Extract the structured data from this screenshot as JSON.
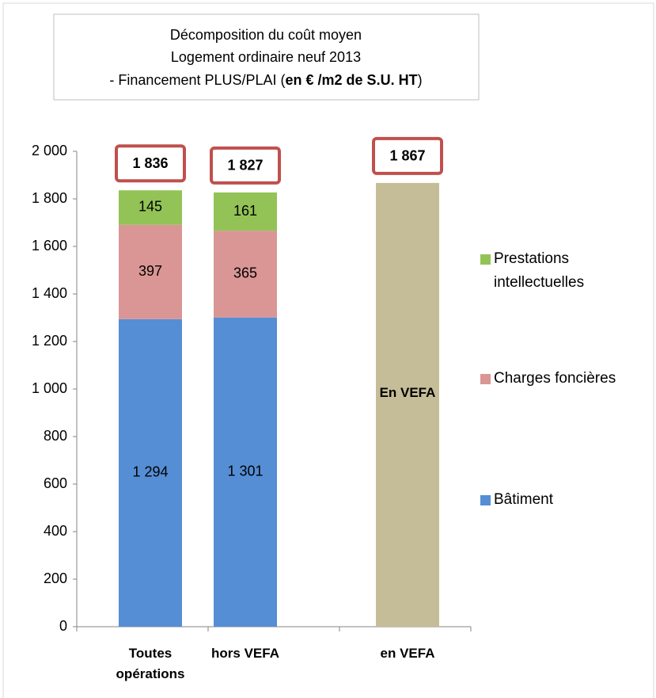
{
  "chart_data": {
    "type": "stacked_bar",
    "title": [
      "Décomposition du coût moyen",
      "Logement ordinaire neuf 2013",
      [
        "- Financement PLUS/PLAI (",
        "en € /m2 de S.U. HT",
        ")"
      ]
    ],
    "categories": [
      "Toutes opérations",
      "hors VEFA",
      "en VEFA"
    ],
    "series": [
      {
        "name": "Bâtiment",
        "color": "#558ed5",
        "values": [
          1294,
          1301,
          null
        ],
        "value_labels": [
          "1 294",
          "1 301",
          null
        ]
      },
      {
        "name": "Charges foncières",
        "color": "#d99694",
        "values": [
          397,
          365,
          null
        ]
      },
      {
        "name": "Prestations intellectuelles",
        "color": "#93c356",
        "values": [
          145,
          161,
          null
        ]
      },
      {
        "name": "En VEFA",
        "color": "#c4bd97",
        "values": [
          null,
          null,
          1867
        ],
        "in_legend": false
      }
    ],
    "totals": [
      1836,
      1827,
      1867
    ],
    "total_labels": [
      "1 836",
      "1 827",
      "1 867"
    ],
    "ylim": [
      0,
      2000
    ],
    "yticks": [
      0,
      200,
      400,
      600,
      800,
      {
        "value": 1000,
        "label": "1 000"
      },
      {
        "value": 1200,
        "label": "1 200"
      },
      {
        "value": 1400,
        "label": "1 400"
      },
      {
        "value": 1600,
        "label": "1 600"
      },
      {
        "value": 1800,
        "label": "1 800"
      },
      {
        "value": 2000,
        "label": "2 000"
      }
    ],
    "grid": false,
    "legend": "right"
  }
}
